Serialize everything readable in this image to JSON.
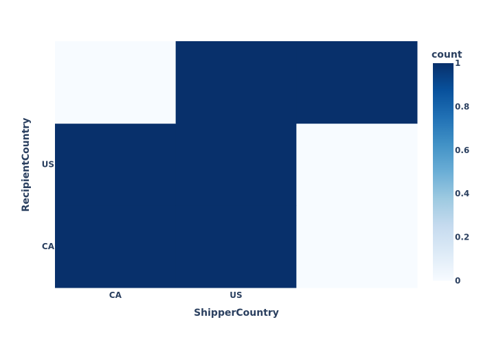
{
  "chart_data": {
    "type": "heatmap",
    "x_categories": [
      "CA",
      "US",
      ""
    ],
    "y_categories": [
      "CA",
      "US",
      ""
    ],
    "z": [
      [
        1,
        1,
        0
      ],
      [
        1,
        1,
        0
      ],
      [
        0,
        1,
        1
      ]
    ],
    "xlabel": "ShipperCountry",
    "ylabel": "RecipientCountry",
    "colorbar": {
      "title": "count",
      "range": [
        0,
        1
      ],
      "ticks": [
        0,
        0.2,
        0.4,
        0.6,
        0.8,
        1
      ],
      "tick_labels": [
        "0",
        "0.2",
        "0.4",
        "0.6",
        "0.8",
        "1"
      ]
    },
    "colorscale": [
      "#f7fbff",
      "#deebf7",
      "#c6dbef",
      "#9ecae1",
      "#6baed6",
      "#4292c6",
      "#2171b5",
      "#08519c",
      "#08306b"
    ]
  }
}
